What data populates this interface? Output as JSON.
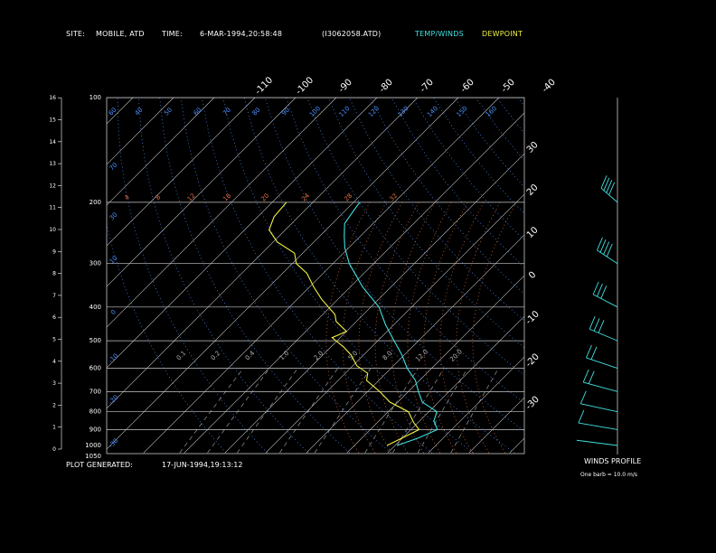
{
  "header": {
    "site_label": "SITE:",
    "site_value": "MOBILE, ATD",
    "time_label": "TIME:",
    "time_value": "6-MAR-1994,20:58:48",
    "file_value": "(I3062058.ATD)",
    "legend_temp": "TEMP/WINDS",
    "legend_dew": "DEWPOINT"
  },
  "footer": {
    "generated_label": "PLOT GENERATED:",
    "generated_value": "17-JUN-1994,19:13:12",
    "winds_profile_label": "WINDS PROFILE",
    "barb_note": "One barb = 10.0 m/s"
  },
  "colors": {
    "temp": "#40e0e0",
    "dewpoint": "#f0f040",
    "isobar": "#c8c8c8",
    "isotherm": "#c8c8c8",
    "dry_adiabat": "#4a90ff",
    "moist_adiabat": "#e07040",
    "mixing_ratio": "#b0b0b0",
    "wind_barb": "#40e0e0"
  },
  "chart_data": {
    "type": "line",
    "title": "",
    "pressure_levels_hpa": [
      "100",
      "200",
      "300",
      "400",
      "500",
      "600",
      "700",
      "800",
      "900",
      "1000",
      "1050"
    ],
    "height_ticks_km": [
      "0",
      "1",
      "2",
      "3",
      "4",
      "5",
      "6",
      "7",
      "8",
      "9",
      "10",
      "11",
      "12",
      "13",
      "14",
      "15",
      "16"
    ],
    "isotherm_top_labels_c": [
      "-110",
      "-100",
      "-90",
      "-80",
      "-70",
      "-60",
      "-50",
      "-40"
    ],
    "isotherm_right_labels_c": [
      "-30",
      "-20",
      "-10",
      "0",
      "10",
      "20",
      "30"
    ],
    "dry_adiabat_labels": [
      "60",
      "40",
      "50",
      "60",
      "70",
      "80",
      "90",
      "100",
      "110",
      "120",
      "130",
      "140",
      "150",
      "160"
    ],
    "moist_adiabat_labels": [
      "4",
      "8",
      "12",
      "16",
      "20",
      "24",
      "28",
      "32"
    ],
    "mixing_ratio_labels": [
      "0.1",
      "0.2",
      "0.4",
      "1.0",
      "2.0",
      "5.0",
      "8.0",
      "12.0",
      "20.0"
    ],
    "series": [
      {
        "name": "TEMP/WINDS",
        "points": [
          {
            "p": 1000,
            "t": 10.5
          },
          {
            "p": 950,
            "t": 14.0
          },
          {
            "p": 900,
            "t": 16.5
          },
          {
            "p": 850,
            "t": 13.5
          },
          {
            "p": 800,
            "t": 12.0
          },
          {
            "p": 750,
            "t": 6.0
          },
          {
            "p": 700,
            "t": 2.5
          },
          {
            "p": 650,
            "t": -1.0
          },
          {
            "p": 600,
            "t": -6.0
          },
          {
            "p": 550,
            "t": -10.5
          },
          {
            "p": 500,
            "t": -16.0
          },
          {
            "p": 450,
            "t": -22.0
          },
          {
            "p": 400,
            "t": -28.0
          },
          {
            "p": 350,
            "t": -37.0
          },
          {
            "p": 300,
            "t": -46.0
          },
          {
            "p": 270,
            "t": -51.0
          },
          {
            "p": 250,
            "t": -54.0
          },
          {
            "p": 230,
            "t": -57.0
          },
          {
            "p": 210,
            "t": -58.0
          },
          {
            "p": 200,
            "t": -58.5
          }
        ]
      },
      {
        "name": "DEWPOINT",
        "points": [
          {
            "p": 1000,
            "t": 8.0
          },
          {
            "p": 950,
            "t": 10.0
          },
          {
            "p": 900,
            "t": 12.0
          },
          {
            "p": 860,
            "t": 9.0
          },
          {
            "p": 800,
            "t": 5.0
          },
          {
            "p": 750,
            "t": -2.0
          },
          {
            "p": 700,
            "t": -7.0
          },
          {
            "p": 650,
            "t": -13.0
          },
          {
            "p": 620,
            "t": -14.5
          },
          {
            "p": 590,
            "t": -19.0
          },
          {
            "p": 550,
            "t": -23.0
          },
          {
            "p": 520,
            "t": -27.0
          },
          {
            "p": 490,
            "t": -32.0
          },
          {
            "p": 470,
            "t": -30.0
          },
          {
            "p": 440,
            "t": -35.0
          },
          {
            "p": 420,
            "t": -37.0
          },
          {
            "p": 380,
            "t": -44.0
          },
          {
            "p": 350,
            "t": -49.0
          },
          {
            "p": 320,
            "t": -54.0
          },
          {
            "p": 300,
            "t": -59.0
          },
          {
            "p": 280,
            "t": -62.0
          },
          {
            "p": 260,
            "t": -69.0
          },
          {
            "p": 240,
            "t": -74.0
          },
          {
            "p": 220,
            "t": -76.0
          },
          {
            "p": 200,
            "t": -76.5
          }
        ]
      }
    ],
    "winds_profile": [
      {
        "p": 1000,
        "speed_ms": 2
      },
      {
        "p": 900,
        "speed_ms": 8
      },
      {
        "p": 800,
        "speed_ms": 12
      },
      {
        "p": 700,
        "speed_ms": 18
      },
      {
        "p": 600,
        "speed_ms": 22
      },
      {
        "p": 500,
        "speed_ms": 28
      },
      {
        "p": 400,
        "speed_ms": 34
      },
      {
        "p": 300,
        "speed_ms": 40
      },
      {
        "p": 200,
        "speed_ms": 44
      }
    ]
  }
}
